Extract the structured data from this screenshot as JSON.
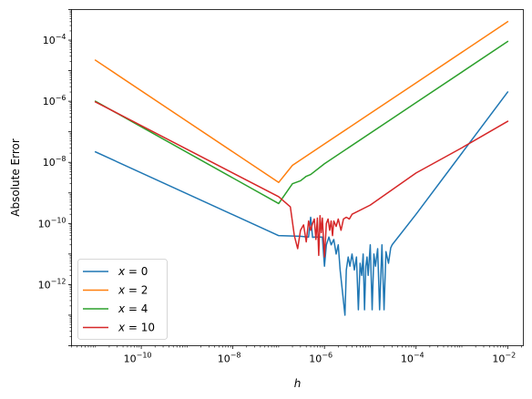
{
  "chart_data": {
    "type": "line",
    "title": "",
    "xlabel": "h",
    "ylabel": "Absolute Error",
    "xscale": "log",
    "yscale": "log",
    "xlim": [
      3e-12,
      0.022
    ],
    "ylim": [
      1e-14,
      0.001
    ],
    "xticks": [
      {
        "value": 1e-10,
        "base": "10",
        "exp": "−10"
      },
      {
        "value": 1e-08,
        "base": "10",
        "exp": "−8"
      },
      {
        "value": 1e-06,
        "base": "10",
        "exp": "−6"
      },
      {
        "value": 0.0001,
        "base": "10",
        "exp": "−4"
      },
      {
        "value": 0.01,
        "base": "10",
        "exp": "−2"
      }
    ],
    "yticks": [
      {
        "value": 1e-12,
        "base": "10",
        "exp": "−12"
      },
      {
        "value": 1e-10,
        "base": "10",
        "exp": "−10"
      },
      {
        "value": 1e-08,
        "base": "10",
        "exp": "−8"
      },
      {
        "value": 1e-06,
        "base": "10",
        "exp": "−6"
      },
      {
        "value": 0.0001,
        "base": "10",
        "exp": "−4"
      }
    ],
    "grid": false,
    "legend_position": "lower-left",
    "series": [
      {
        "name": "x = 0",
        "label_var": "x",
        "label_val": "0",
        "color": "#1f77b4",
        "points": [
          [
            1e-11,
            2.2e-08
          ],
          [
            1e-07,
            4e-11
          ],
          [
            3e-07,
            3.8e-11
          ],
          [
            4.5e-07,
            3.6e-11
          ],
          [
            5e-07,
            1.6e-10
          ],
          [
            5.5e-07,
            3.5e-11
          ],
          [
            6e-07,
            3.6e-11
          ],
          [
            9e-07,
            3.6e-11
          ],
          [
            1e-06,
            4e-12
          ],
          [
            1.1e-06,
            2e-11
          ],
          [
            1.25e-06,
            3.6e-11
          ],
          [
            1.4e-06,
            2e-11
          ],
          [
            1.6e-06,
            3e-11
          ],
          [
            1.8e-06,
            1e-11
          ],
          [
            2e-06,
            2e-11
          ],
          [
            2.2e-06,
            3e-12
          ],
          [
            2.5e-06,
            5e-13
          ],
          [
            2.8e-06,
            1e-13
          ],
          [
            3e-06,
            3e-12
          ],
          [
            3.3e-06,
            8e-12
          ],
          [
            3.6e-06,
            4e-12
          ],
          [
            4e-06,
            1e-11
          ],
          [
            4.5e-06,
            3e-12
          ],
          [
            5e-06,
            8e-12
          ],
          [
            5.5e-06,
            1.5e-13
          ],
          [
            6e-06,
            5e-12
          ],
          [
            6.5e-06,
            2e-12
          ],
          [
            7e-06,
            1e-11
          ],
          [
            7.5e-06,
            1.5e-13
          ],
          [
            8e-06,
            4e-12
          ],
          [
            8.5e-06,
            8e-12
          ],
          [
            9e-06,
            2e-12
          ],
          [
            1e-05,
            2e-11
          ],
          [
            1.1e-05,
            1.5e-13
          ],
          [
            1.2e-05,
            1e-11
          ],
          [
            1.3e-05,
            4e-12
          ],
          [
            1.45e-05,
            1.5e-11
          ],
          [
            1.6e-05,
            1.5e-13
          ],
          [
            1.8e-05,
            2e-11
          ],
          [
            2e-05,
            1.5e-13
          ],
          [
            2.2e-05,
            1.2e-11
          ],
          [
            2.5e-05,
            5e-12
          ],
          [
            2.8e-05,
            1.6e-11
          ],
          [
            3e-05,
            2e-11
          ],
          [
            0.0001,
            2e-10
          ],
          [
            0.001,
            2e-08
          ],
          [
            0.01,
            2e-06
          ]
        ]
      },
      {
        "name": "x = 2",
        "label_var": "x",
        "label_val": "2",
        "color": "#ff7f0e",
        "points": [
          [
            1e-11,
            2.2e-05
          ],
          [
            1e-07,
            2.2e-09
          ],
          [
            2e-07,
            8e-09
          ],
          [
            1e-06,
            4e-08
          ],
          [
            0.0001,
            4e-06
          ],
          [
            0.01,
            0.0004
          ]
        ]
      },
      {
        "name": "x = 4",
        "label_var": "x",
        "label_val": "4",
        "color": "#2ca02c",
        "points": [
          [
            1e-11,
            1e-06
          ],
          [
            1e-07,
            4.5e-10
          ],
          [
            2e-07,
            2e-09
          ],
          [
            3e-07,
            2.5e-09
          ],
          [
            4e-07,
            3.5e-09
          ],
          [
            5e-07,
            4e-09
          ],
          [
            1e-06,
            9e-09
          ],
          [
            0.0001,
            9e-07
          ],
          [
            0.01,
            9e-05
          ]
        ]
      },
      {
        "name": "x = 10",
        "label_var": "x",
        "label_val": "10",
        "color": "#d62728",
        "points": [
          [
            1e-11,
            9.5e-07
          ],
          [
            1e-07,
            7.5e-10
          ],
          [
            1.8e-07,
            3.5e-10
          ],
          [
            2.2e-07,
            4e-11
          ],
          [
            2.6e-07,
            1.5e-11
          ],
          [
            3e-07,
            6e-11
          ],
          [
            3.5e-07,
            9e-11
          ],
          [
            4e-07,
            2.5e-11
          ],
          [
            4.5e-07,
            1.2e-10
          ],
          [
            5e-07,
            6e-11
          ],
          [
            5.5e-07,
            1e-10
          ],
          [
            6e-07,
            1.4e-10
          ],
          [
            6.5e-07,
            3e-11
          ],
          [
            7e-07,
            1.5e-10
          ],
          [
            7.5e-07,
            9e-12
          ],
          [
            8e-07,
            1.8e-10
          ],
          [
            8.5e-07,
            5e-11
          ],
          [
            9e-07,
            1.5e-10
          ],
          [
            1e-06,
            8e-12
          ],
          [
            1.1e-06,
            1e-10
          ],
          [
            1.2e-06,
            1.4e-10
          ],
          [
            1.3e-06,
            6e-11
          ],
          [
            1.4e-06,
            1.2e-10
          ],
          [
            1.5e-06,
            4e-11
          ],
          [
            1.6e-06,
            1.2e-10
          ],
          [
            1.8e-06,
            8e-11
          ],
          [
            2e-06,
            1.4e-10
          ],
          [
            2.3e-06,
            6e-11
          ],
          [
            2.6e-06,
            1.4e-10
          ],
          [
            3e-06,
            1.6e-10
          ],
          [
            3.5e-06,
            1.4e-10
          ],
          [
            4e-06,
            2e-10
          ],
          [
            1e-05,
            4e-10
          ],
          [
            0.0001,
            4.5e-09
          ],
          [
            0.001,
            3e-08
          ],
          [
            0.01,
            2.2e-07
          ]
        ]
      }
    ]
  }
}
